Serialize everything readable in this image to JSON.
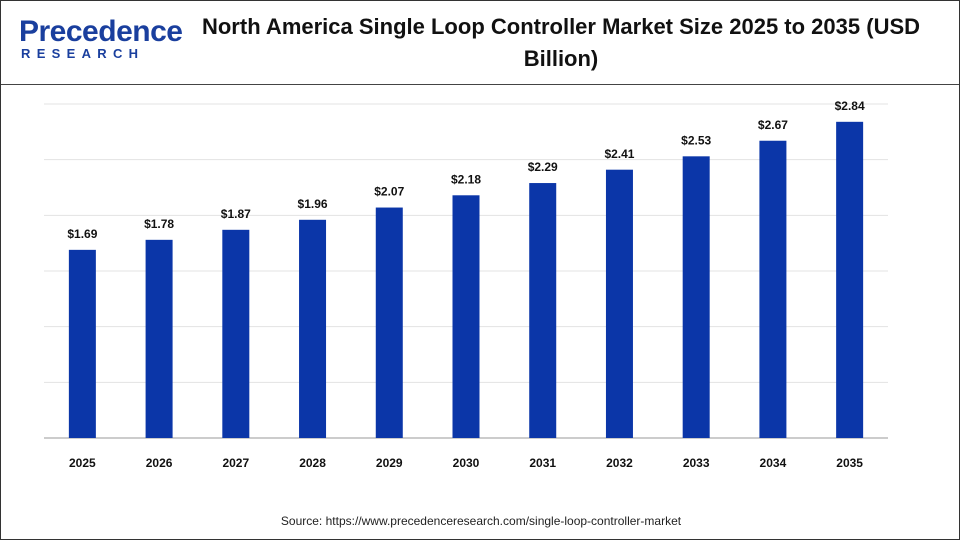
{
  "logo": {
    "name": "Precedence",
    "tagline": "RESEARCH"
  },
  "chart_data": {
    "type": "bar",
    "title": "North America Single Loop Controller Market Size 2025 to 2035 (USD Billion)",
    "categories": [
      "2025",
      "2026",
      "2027",
      "2028",
      "2029",
      "2030",
      "2031",
      "2032",
      "2033",
      "2034",
      "2035"
    ],
    "values": [
      1.69,
      1.78,
      1.87,
      1.96,
      2.07,
      2.18,
      2.29,
      2.41,
      2.53,
      2.67,
      2.84
    ],
    "value_labels": [
      "$1.69",
      "$1.78",
      "$1.87",
      "$1.96",
      "$2.07",
      "$2.18",
      "$2.29",
      "$2.41",
      "$2.53",
      "$2.67",
      "$2.84"
    ],
    "color": "#0b36a8",
    "ylim": [
      0,
      3
    ],
    "yticks": [
      0,
      0.5,
      1,
      1.5,
      2,
      2.5,
      3
    ],
    "grid": true,
    "source": "Source: https://www.precedenceresearch.com/single-loop-controller-market"
  }
}
